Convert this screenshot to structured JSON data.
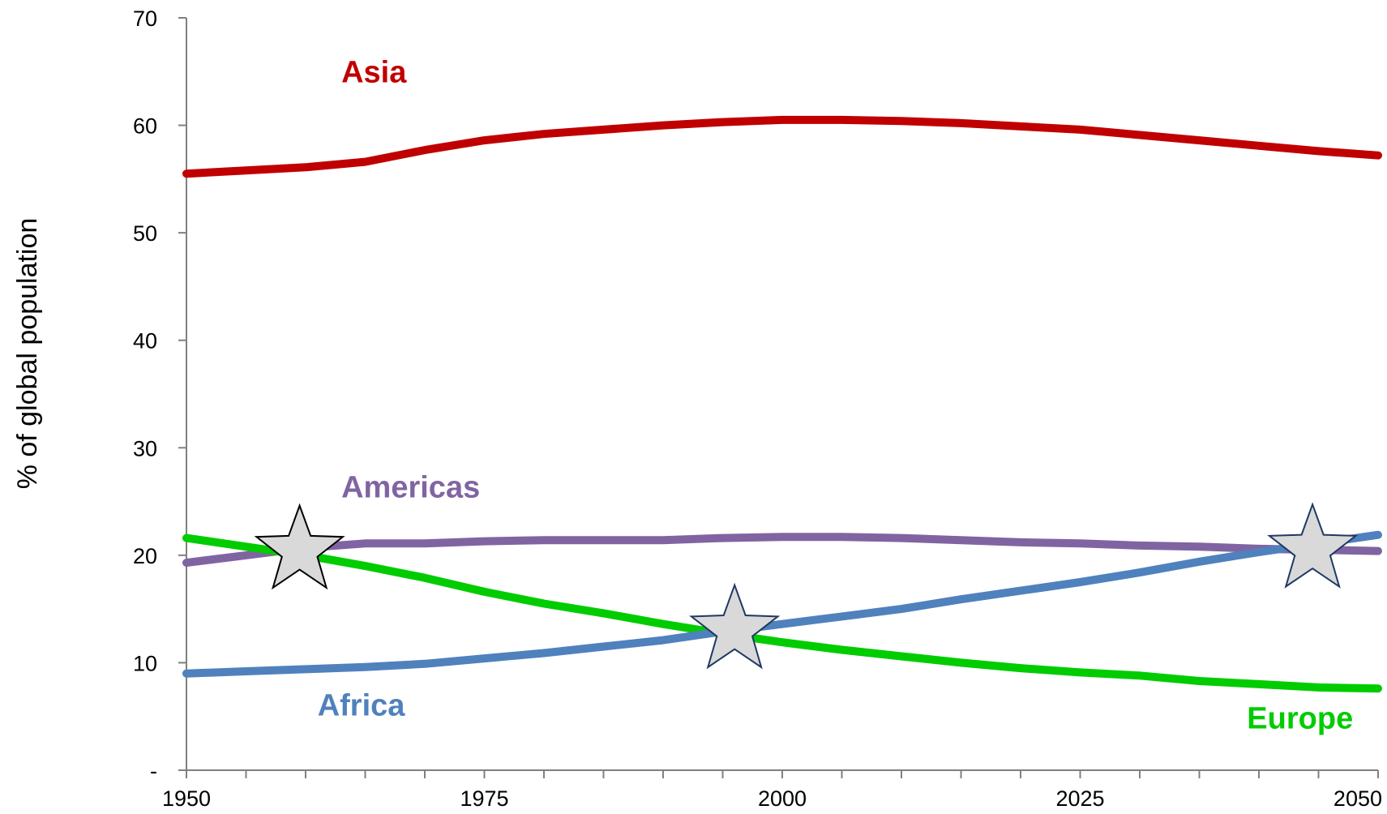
{
  "chart_data": {
    "type": "line",
    "title": "",
    "xlabel": "",
    "ylabel": "% of global population",
    "xlim": [
      1950,
      2050
    ],
    "ylim": [
      0,
      70
    ],
    "grid": false,
    "x_ticks": [
      1950,
      1955,
      1960,
      1965,
      1970,
      1975,
      1980,
      1985,
      1990,
      1995,
      2000,
      2005,
      2010,
      2015,
      2020,
      2025,
      2030,
      2035,
      2040,
      2045,
      2050
    ],
    "x_tick_labels": [
      {
        "value": 1950,
        "label": "1950"
      },
      {
        "value": 1975,
        "label": "1975"
      },
      {
        "value": 2000,
        "label": "2000"
      },
      {
        "value": 2025,
        "label": "2025"
      },
      {
        "value": 2050,
        "label": "2050"
      }
    ],
    "y_tick_labels": [
      {
        "value": 0,
        "label": "-"
      },
      {
        "value": 10,
        "label": "10"
      },
      {
        "value": 20,
        "label": "20"
      },
      {
        "value": 30,
        "label": "30"
      },
      {
        "value": 40,
        "label": "40"
      },
      {
        "value": 50,
        "label": "50"
      },
      {
        "value": 60,
        "label": "60"
      },
      {
        "value": 70,
        "label": "70"
      }
    ],
    "series": [
      {
        "name": "Asia",
        "color": "#c00000",
        "x": [
          1950,
          1955,
          1960,
          1965,
          1970,
          1975,
          1980,
          1985,
          1990,
          1995,
          2000,
          2005,
          2010,
          2015,
          2020,
          2025,
          2030,
          2035,
          2040,
          2045,
          2050
        ],
        "values": [
          55.5,
          55.8,
          56.1,
          56.6,
          57.7,
          58.6,
          59.2,
          59.6,
          60.0,
          60.3,
          60.5,
          60.5,
          60.4,
          60.2,
          59.9,
          59.6,
          59.1,
          58.6,
          58.1,
          57.6,
          57.2
        ],
        "label_at": [
          1963,
          64
        ]
      },
      {
        "name": "Americas",
        "color": "#8064a2",
        "x": [
          1950,
          1955,
          1960,
          1965,
          1970,
          1975,
          1980,
          1985,
          1990,
          1995,
          2000,
          2005,
          2010,
          2015,
          2020,
          2025,
          2030,
          2035,
          2040,
          2045,
          2050
        ],
        "values": [
          19.3,
          20.0,
          20.7,
          21.1,
          21.1,
          21.3,
          21.4,
          21.4,
          21.4,
          21.6,
          21.7,
          21.7,
          21.6,
          21.4,
          21.2,
          21.1,
          20.9,
          20.8,
          20.6,
          20.5,
          20.4
        ],
        "label_at": [
          1963,
          25.4
        ]
      },
      {
        "name": "Europe",
        "color": "#00cc00",
        "x": [
          1950,
          1955,
          1960,
          1965,
          1970,
          1975,
          1980,
          1985,
          1990,
          1995,
          2000,
          2005,
          2010,
          2015,
          2020,
          2025,
          2030,
          2035,
          2040,
          2045,
          2050
        ],
        "values": [
          21.6,
          20.8,
          20.0,
          19.0,
          17.9,
          16.6,
          15.5,
          14.6,
          13.6,
          12.7,
          11.9,
          11.2,
          10.6,
          10.0,
          9.5,
          9.1,
          8.8,
          8.3,
          8.0,
          7.7,
          7.6
        ],
        "label_at": [
          2039,
          3.9
        ]
      },
      {
        "name": "Africa",
        "color": "#4f81bd",
        "x": [
          1950,
          1955,
          1960,
          1965,
          1970,
          1975,
          1980,
          1985,
          1990,
          1995,
          2000,
          2005,
          2010,
          2015,
          2020,
          2025,
          2030,
          2035,
          2040,
          2045,
          2050
        ],
        "values": [
          9.0,
          9.2,
          9.4,
          9.6,
          9.9,
          10.4,
          10.9,
          11.5,
          12.1,
          12.9,
          13.6,
          14.3,
          15.0,
          15.9,
          16.7,
          17.5,
          18.4,
          19.4,
          20.3,
          21.1,
          21.9
        ],
        "label_at": [
          1961,
          5.1
        ]
      }
    ],
    "annotations": [
      {
        "type": "star",
        "x": 1959.5,
        "y": 20.4,
        "fill": "#d9d9d9",
        "stroke": "#000000"
      },
      {
        "type": "star",
        "x": 1996,
        "y": 13.0,
        "fill": "#d9d9d9",
        "stroke": "#1f3864"
      },
      {
        "type": "star",
        "x": 2044.5,
        "y": 20.5,
        "fill": "#d9d9d9",
        "stroke": "#1f3864"
      }
    ]
  }
}
